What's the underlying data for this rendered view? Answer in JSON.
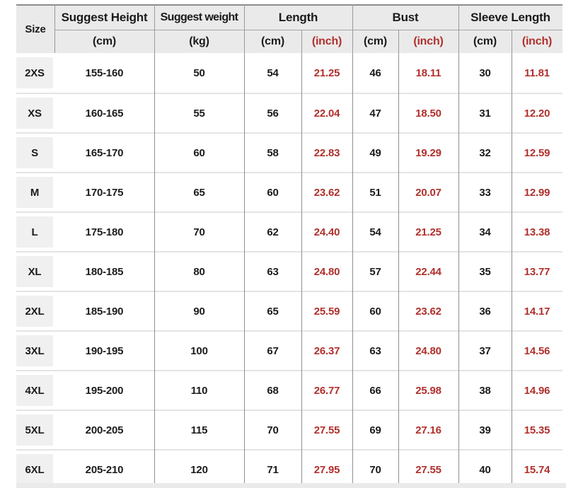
{
  "colors": {
    "inch_red": "#b0302c",
    "text_dark": "#1b1b1b",
    "header_bg": "#eaeaea",
    "size_box_bg": "#f0f0f0"
  },
  "header": {
    "size_label": "Size",
    "groups": [
      {
        "label": "Suggest Height",
        "units": [
          "(cm)"
        ]
      },
      {
        "label": "Suggest weight",
        "units": [
          "(kg)"
        ]
      },
      {
        "label": "Length",
        "units": [
          "(cm)",
          "(inch)"
        ]
      },
      {
        "label": "Bust",
        "units": [
          "(cm)",
          "(inch)"
        ]
      },
      {
        "label": "Sleeve Length",
        "units": [
          "(cm)",
          "(inch)"
        ]
      }
    ]
  },
  "chart_data": {
    "type": "table",
    "columns": [
      "Size",
      "Suggest Height (cm)",
      "Suggest weight (kg)",
      "Length (cm)",
      "Length (inch)",
      "Bust (cm)",
      "Bust (inch)",
      "Sleeve Length (cm)",
      "Sleeve Length (inch)"
    ],
    "rows": [
      {
        "size": "2XS",
        "height_cm": "155-160",
        "weight_kg": "50",
        "length_cm": "54",
        "length_inch": "21.25",
        "bust_cm": "46",
        "bust_inch": "18.11",
        "sleeve_cm": "30",
        "sleeve_inch": "11.81"
      },
      {
        "size": "XS",
        "height_cm": "160-165",
        "weight_kg": "55",
        "length_cm": "56",
        "length_inch": "22.04",
        "bust_cm": "47",
        "bust_inch": "18.50",
        "sleeve_cm": "31",
        "sleeve_inch": "12.20"
      },
      {
        "size": "S",
        "height_cm": "165-170",
        "weight_kg": "60",
        "length_cm": "58",
        "length_inch": "22.83",
        "bust_cm": "49",
        "bust_inch": "19.29",
        "sleeve_cm": "32",
        "sleeve_inch": "12.59"
      },
      {
        "size": "M",
        "height_cm": "170-175",
        "weight_kg": "65",
        "length_cm": "60",
        "length_inch": "23.62",
        "bust_cm": "51",
        "bust_inch": "20.07",
        "sleeve_cm": "33",
        "sleeve_inch": "12.99"
      },
      {
        "size": "L",
        "height_cm": "175-180",
        "weight_kg": "70",
        "length_cm": "62",
        "length_inch": "24.40",
        "bust_cm": "54",
        "bust_inch": "21.25",
        "sleeve_cm": "34",
        "sleeve_inch": "13.38"
      },
      {
        "size": "XL",
        "height_cm": "180-185",
        "weight_kg": "80",
        "length_cm": "63",
        "length_inch": "24.80",
        "bust_cm": "57",
        "bust_inch": "22.44",
        "sleeve_cm": "35",
        "sleeve_inch": "13.77"
      },
      {
        "size": "2XL",
        "height_cm": "185-190",
        "weight_kg": "90",
        "length_cm": "65",
        "length_inch": "25.59",
        "bust_cm": "60",
        "bust_inch": "23.62",
        "sleeve_cm": "36",
        "sleeve_inch": "14.17"
      },
      {
        "size": "3XL",
        "height_cm": "190-195",
        "weight_kg": "100",
        "length_cm": "67",
        "length_inch": "26.37",
        "bust_cm": "63",
        "bust_inch": "24.80",
        "sleeve_cm": "37",
        "sleeve_inch": "14.56"
      },
      {
        "size": "4XL",
        "height_cm": "195-200",
        "weight_kg": "110",
        "length_cm": "68",
        "length_inch": "26.77",
        "bust_cm": "66",
        "bust_inch": "25.98",
        "sleeve_cm": "38",
        "sleeve_inch": "14.96"
      },
      {
        "size": "5XL",
        "height_cm": "200-205",
        "weight_kg": "115",
        "length_cm": "70",
        "length_inch": "27.55",
        "bust_cm": "69",
        "bust_inch": "27.16",
        "sleeve_cm": "39",
        "sleeve_inch": "15.35"
      },
      {
        "size": "6XL",
        "height_cm": "205-210",
        "weight_kg": "120",
        "length_cm": "71",
        "length_inch": "27.95",
        "bust_cm": "70",
        "bust_inch": "27.55",
        "sleeve_cm": "40",
        "sleeve_inch": "15.74"
      }
    ]
  }
}
